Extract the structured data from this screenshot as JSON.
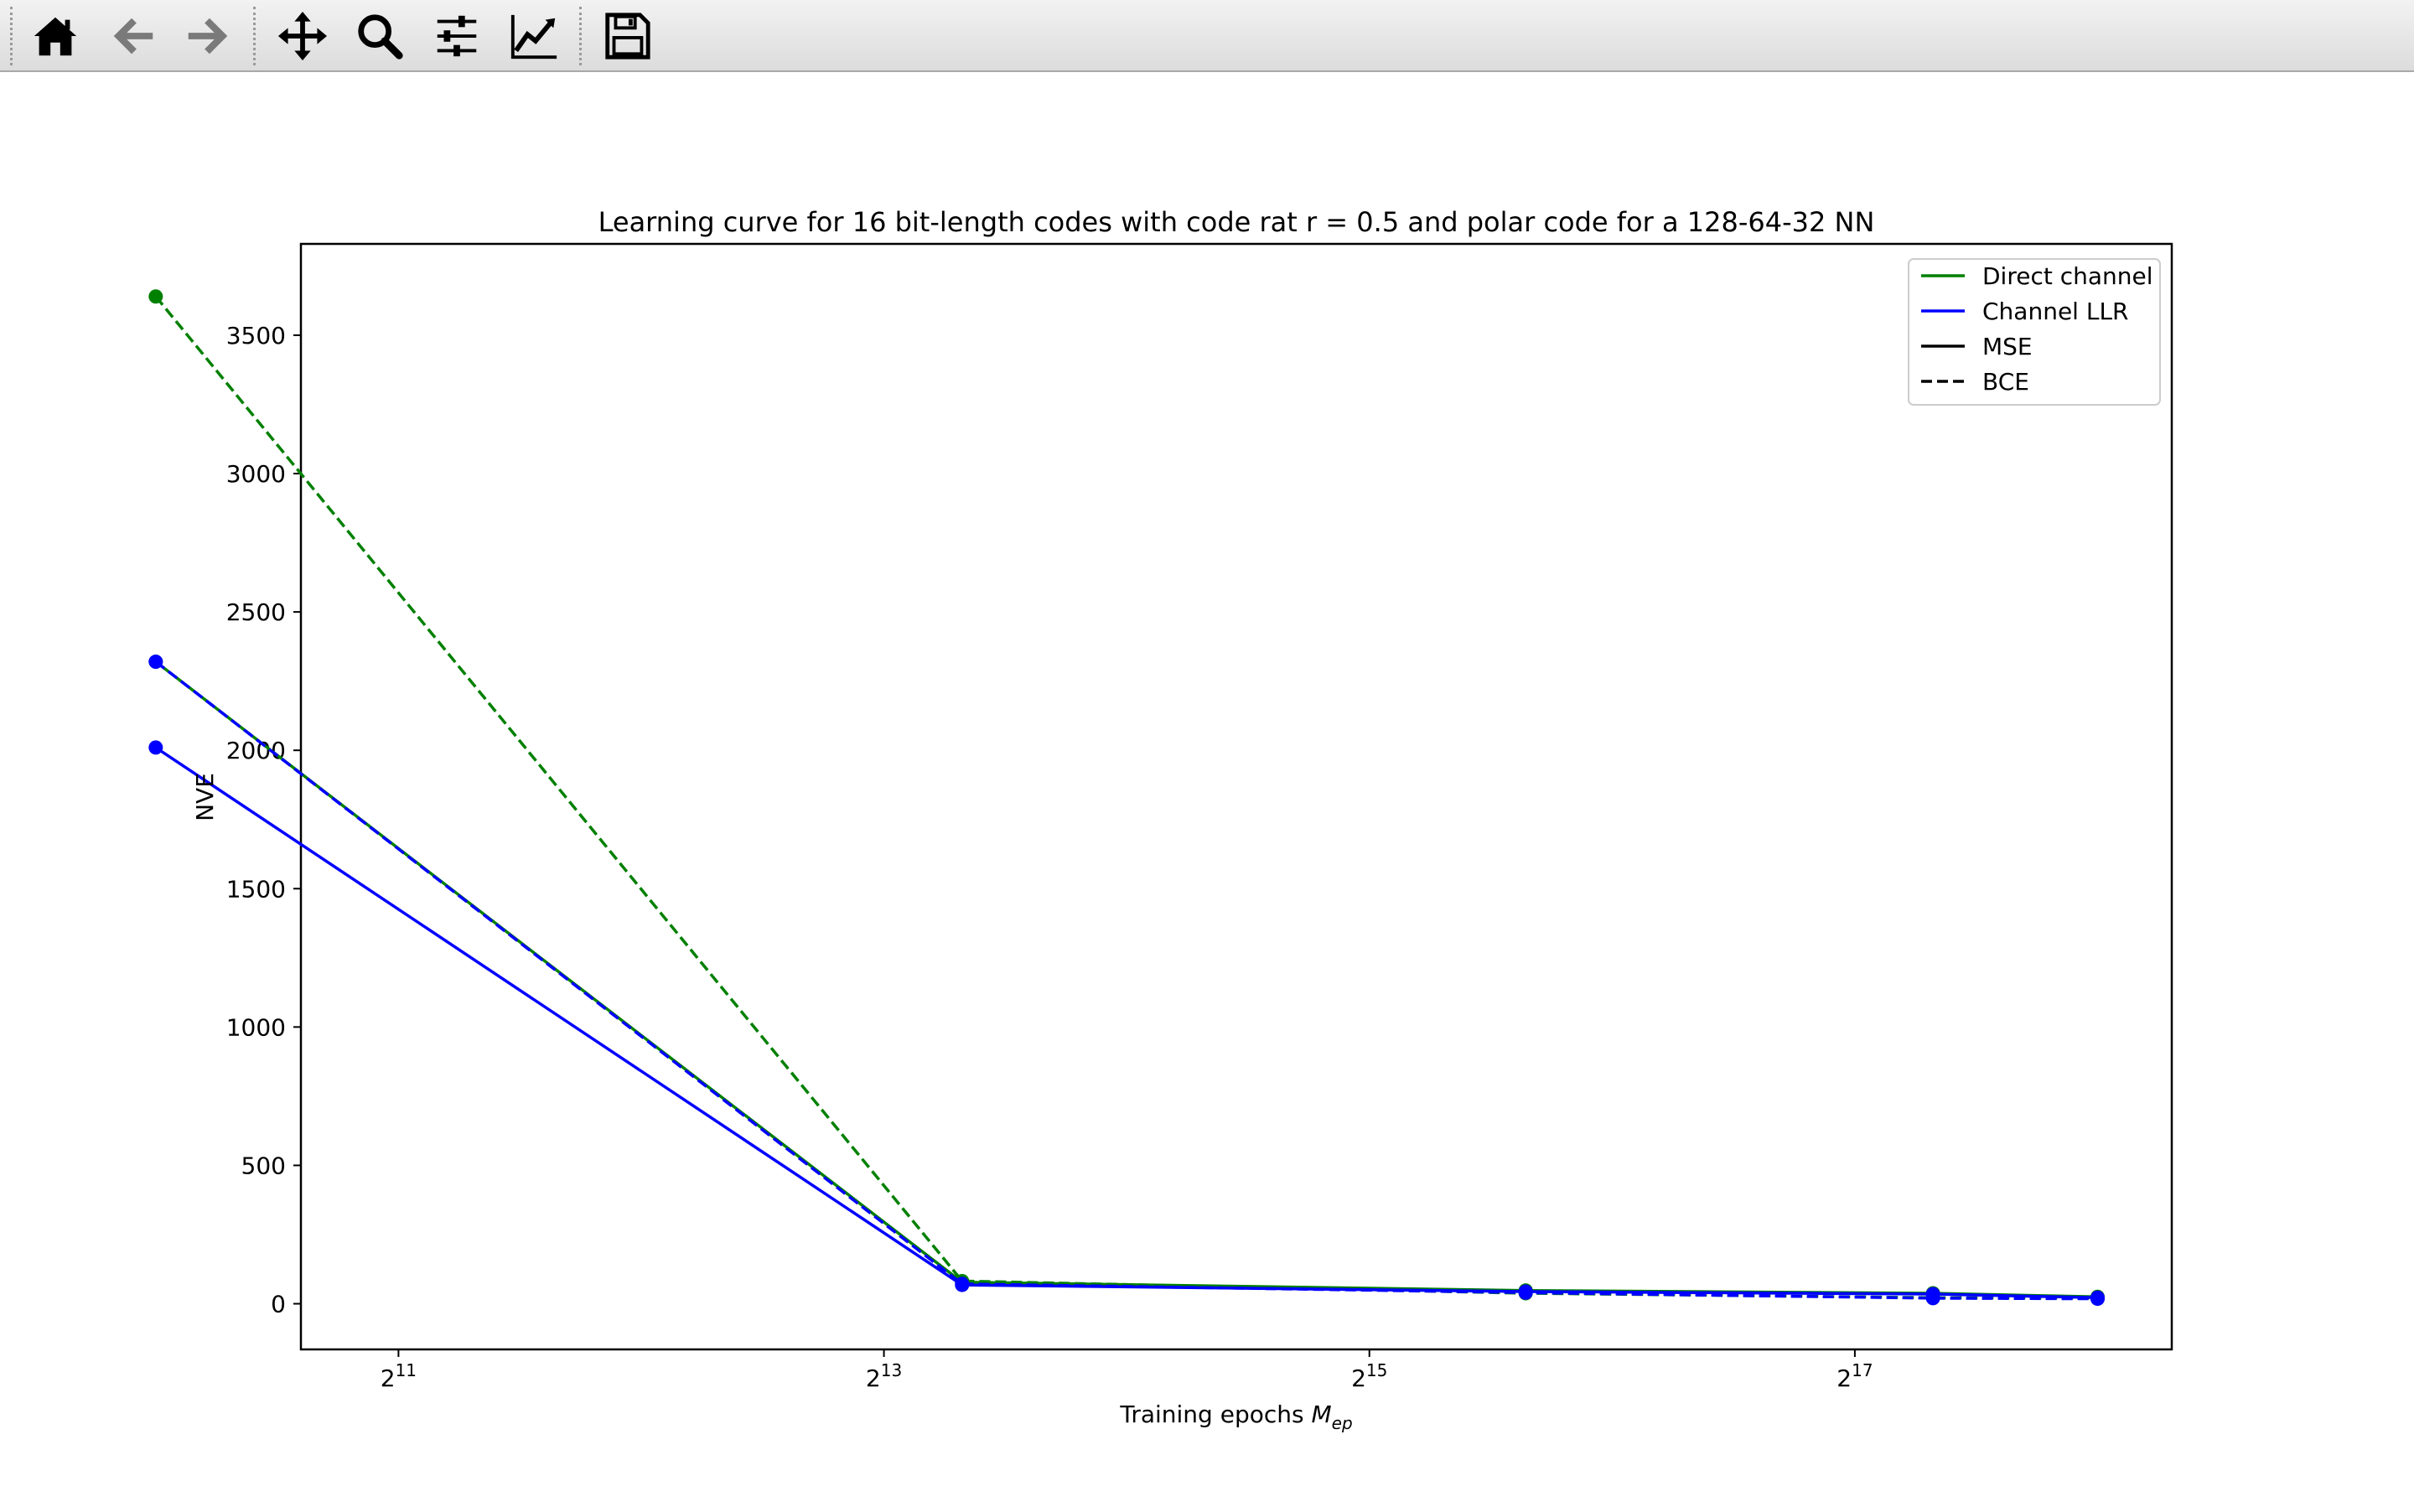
{
  "toolbar": {
    "buttons": [
      {
        "name": "home-button",
        "icon": "home-icon"
      },
      {
        "name": "back-button",
        "icon": "arrow-left-icon"
      },
      {
        "name": "forward-button",
        "icon": "arrow-right-icon"
      },
      {
        "name": "pan-button",
        "icon": "move-icon"
      },
      {
        "name": "zoom-button",
        "icon": "magnifier-icon"
      },
      {
        "name": "subplots-button",
        "icon": "sliders-icon"
      },
      {
        "name": "edit-axis-button",
        "icon": "line-chart-icon"
      },
      {
        "name": "save-button",
        "icon": "floppy-disk-icon"
      }
    ]
  },
  "chart_data": {
    "type": "line",
    "title": "Learning curve for 16 bit-length codes with code rat r = 0.5 and polar code for a 128-64-32 NN",
    "xlabel": "Training epochs",
    "xlabel_math": "M",
    "xlabel_sub": "ep",
    "ylabel": "NVE",
    "xscale": "log2",
    "xlim": [
      1550,
      324000
    ],
    "ylim": [
      -165,
      3830
    ],
    "xticks": [
      {
        "exp": 11,
        "value": 2048
      },
      {
        "exp": 13,
        "value": 8192
      },
      {
        "exp": 15,
        "value": 32768
      },
      {
        "exp": 17,
        "value": 131072
      }
    ],
    "xtick_base": "2",
    "yticks": [
      0,
      500,
      1000,
      1500,
      2000,
      2500,
      3000,
      3500
    ],
    "legend": {
      "position": "top-right",
      "entries": [
        {
          "label": "Direct channel",
          "color": "#008000",
          "dash": false
        },
        {
          "label": "Channel LLR",
          "color": "#0000ff",
          "dash": false
        },
        {
          "label": "MSE",
          "color": "#000000",
          "dash": false
        },
        {
          "label": "BCE",
          "color": "#000000",
          "dash": true
        }
      ]
    },
    "x": [
      1024,
      8192,
      65536,
      262144
    ],
    "series": [
      {
        "name": "Direct channel MSE",
        "color": "#008000",
        "dash": false,
        "x": [
          1024,
          10240,
          51200,
          163840,
          262144
        ],
        "values": [
          2320,
          78,
          48,
          38,
          25
        ]
      },
      {
        "name": "Direct channel BCE",
        "color": "#008000",
        "dash": true,
        "x": [
          1024,
          10240,
          51200,
          163840,
          262144
        ],
        "values": [
          3640,
          82,
          38,
          22,
          20
        ]
      },
      {
        "name": "Channel LLR MSE",
        "color": "#0000ff",
        "dash": false,
        "x": [
          1024,
          10240,
          51200,
          163840,
          262144
        ],
        "values": [
          2010,
          68,
          44,
          35,
          22
        ]
      },
      {
        "name": "Channel LLR BCE",
        "color": "#0000ff",
        "dash": true,
        "x": [
          1024,
          10240,
          51200,
          163840,
          262144
        ],
        "values": [
          2320,
          72,
          40,
          20,
          18
        ]
      }
    ]
  }
}
